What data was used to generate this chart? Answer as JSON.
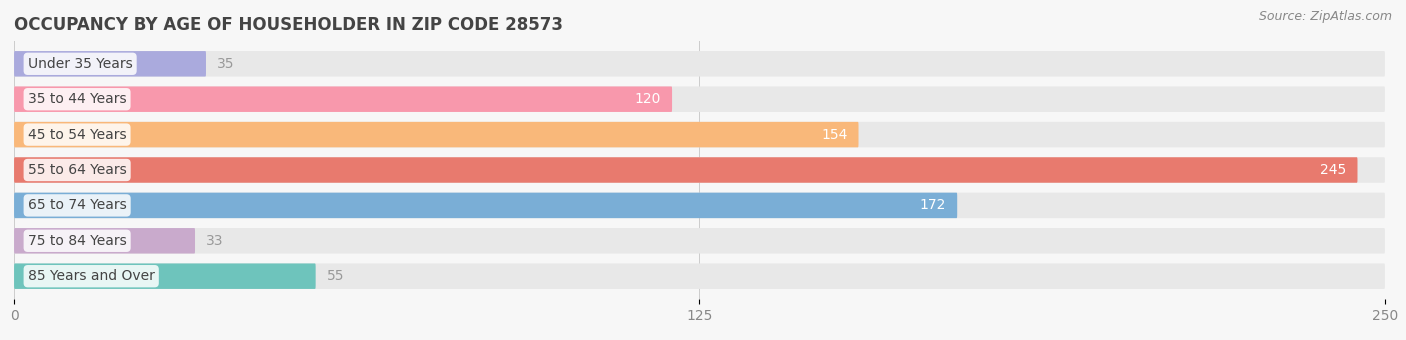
{
  "title": "OCCUPANCY BY AGE OF HOUSEHOLDER IN ZIP CODE 28573",
  "source": "Source: ZipAtlas.com",
  "categories": [
    "Under 35 Years",
    "35 to 44 Years",
    "45 to 54 Years",
    "55 to 64 Years",
    "65 to 74 Years",
    "75 to 84 Years",
    "85 Years and Over"
  ],
  "values": [
    35,
    120,
    154,
    245,
    172,
    33,
    55
  ],
  "bar_colors": [
    "#aaaadd",
    "#f898ac",
    "#f9b87a",
    "#e87a6e",
    "#7aaed6",
    "#c9aacc",
    "#6ec4bc"
  ],
  "xlim": [
    0,
    250
  ],
  "xticks": [
    0,
    125,
    250
  ],
  "label_inside_color": "#ffffff",
  "label_outside_color": "#999999",
  "label_inside_threshold": 60,
  "background_color": "#f7f7f7",
  "bar_background_color": "#e8e8e8",
  "title_fontsize": 12,
  "source_fontsize": 9,
  "tick_fontsize": 10,
  "label_fontsize": 10,
  "category_fontsize": 10
}
